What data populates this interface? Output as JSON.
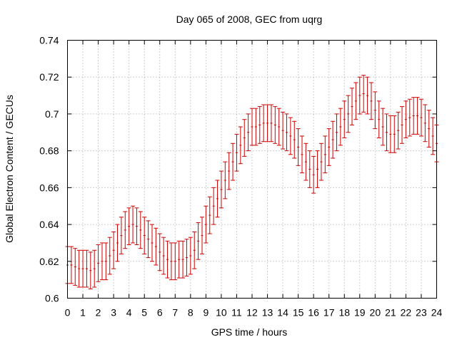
{
  "chart_data": {
    "type": "scatter",
    "title": "Day 065 of 2008, GEC from uqrg",
    "xlabel": "GPS time / hours",
    "ylabel": "Global Electron Content / GECUs",
    "xlim": [
      0,
      24
    ],
    "ylim": [
      0.6,
      0.74
    ],
    "xticks": [
      "0",
      "1",
      "2",
      "3",
      "4",
      "5",
      "6",
      "7",
      "8",
      "9",
      "10",
      "11",
      "12",
      "13",
      "14",
      "15",
      "16",
      "17",
      "18",
      "19",
      "20",
      "21",
      "22",
      "23",
      "24"
    ],
    "yticks": [
      "0.6",
      "0.62",
      "0.64",
      "0.66",
      "0.68",
      "0.7",
      "0.72",
      "0.74"
    ],
    "grid": true,
    "series": [
      {
        "name": "GEC",
        "color": "#cc0000",
        "x": [
          0,
          0.25,
          0.5,
          0.75,
          1,
          1.25,
          1.5,
          1.75,
          2,
          2.25,
          2.5,
          2.75,
          3,
          3.25,
          3.5,
          3.75,
          4,
          4.25,
          4.5,
          4.75,
          5,
          5.25,
          5.5,
          5.75,
          6,
          6.25,
          6.5,
          6.75,
          7,
          7.25,
          7.5,
          7.75,
          8,
          8.25,
          8.5,
          8.75,
          9,
          9.25,
          9.5,
          9.75,
          10,
          10.25,
          10.5,
          10.75,
          11,
          11.25,
          11.5,
          11.75,
          12,
          12.25,
          12.5,
          12.75,
          13,
          13.25,
          13.5,
          13.75,
          14,
          14.25,
          14.5,
          14.75,
          15,
          15.25,
          15.5,
          15.75,
          16,
          16.25,
          16.5,
          16.75,
          17,
          17.25,
          17.5,
          17.75,
          18,
          18.25,
          18.5,
          18.75,
          19,
          19.25,
          19.5,
          19.75,
          20,
          20.25,
          20.5,
          20.75,
          21,
          21.25,
          21.5,
          21.75,
          22,
          22.25,
          22.5,
          22.75,
          23,
          23.25,
          23.5,
          23.75,
          24
        ],
        "y": [
          0.618,
          0.618,
          0.617,
          0.616,
          0.616,
          0.616,
          0.615,
          0.616,
          0.619,
          0.62,
          0.62,
          0.623,
          0.626,
          0.63,
          0.634,
          0.637,
          0.639,
          0.64,
          0.639,
          0.637,
          0.634,
          0.632,
          0.63,
          0.628,
          0.625,
          0.623,
          0.621,
          0.62,
          0.62,
          0.621,
          0.621,
          0.622,
          0.623,
          0.626,
          0.631,
          0.634,
          0.64,
          0.645,
          0.65,
          0.654,
          0.659,
          0.664,
          0.669,
          0.674,
          0.679,
          0.683,
          0.687,
          0.69,
          0.693,
          0.693,
          0.694,
          0.695,
          0.695,
          0.695,
          0.694,
          0.693,
          0.691,
          0.69,
          0.688,
          0.686,
          0.682,
          0.678,
          0.674,
          0.67,
          0.667,
          0.67,
          0.674,
          0.678,
          0.682,
          0.686,
          0.69,
          0.693,
          0.697,
          0.7,
          0.704,
          0.707,
          0.71,
          0.711,
          0.71,
          0.707,
          0.702,
          0.697,
          0.693,
          0.69,
          0.689,
          0.689,
          0.691,
          0.694,
          0.697,
          0.698,
          0.699,
          0.699,
          0.698,
          0.695,
          0.692,
          0.688,
          0.684
        ],
        "error": 0.01
      }
    ]
  }
}
